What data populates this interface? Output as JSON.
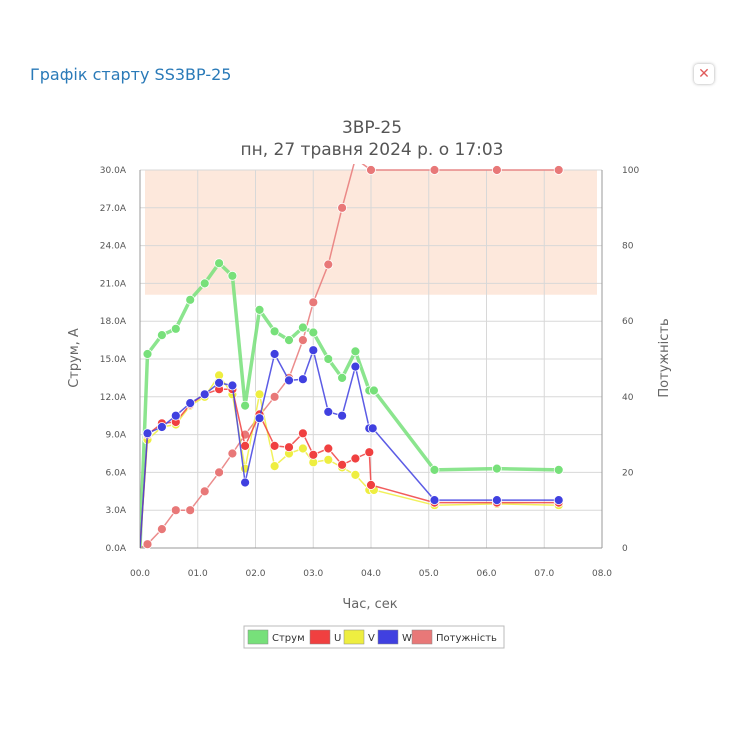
{
  "dialog": {
    "title": "Графік старту SS3BP-25",
    "close_symbol": "✕"
  },
  "chart_data": {
    "type": "line",
    "title": "3BP-25",
    "subtitle": "пн, 27 травня 2024 р. о 17:03",
    "xlabel": "Час, сек",
    "ylabel_left": "Струм, А",
    "ylabel_right": "Потужність",
    "xlim": [
      0,
      8
    ],
    "ylim_left": [
      0,
      30
    ],
    "ylim_right": [
      0,
      100
    ],
    "x_ticks": [
      "00.0",
      "01.0",
      "02.0",
      "03.0",
      "04.0",
      "05.0",
      "06.0",
      "07.0",
      "08.0"
    ],
    "y_left_ticks": [
      "0.0A",
      "3.0A",
      "6.0A",
      "9.0A",
      "12.0A",
      "15.0A",
      "18.0A",
      "21.0A",
      "24.0A",
      "27.0A",
      "30.0A"
    ],
    "y_right_ticks": [
      "0",
      "20",
      "40",
      "60",
      "80",
      "100"
    ],
    "grid": true,
    "legend_position": "bottom",
    "band": {
      "axis": "right",
      "from": 67,
      "to": 100,
      "color": "#fde8dc"
    },
    "series": [
      {
        "name": "Струм",
        "color": "#77e07a",
        "axis": "left",
        "width": 3.5,
        "points": [
          [
            0,
            0
          ],
          [
            0.13,
            15.4
          ],
          [
            0.38,
            16.9
          ],
          [
            0.62,
            17.4
          ],
          [
            0.87,
            19.7
          ],
          [
            1.12,
            21.0
          ],
          [
            1.37,
            22.6
          ],
          [
            1.6,
            21.6
          ],
          [
            1.82,
            11.3
          ],
          [
            2.07,
            18.9
          ],
          [
            2.33,
            17.2
          ],
          [
            2.58,
            16.5
          ],
          [
            2.82,
            17.5
          ],
          [
            3.0,
            17.1
          ],
          [
            3.26,
            15.0
          ],
          [
            3.5,
            13.5
          ],
          [
            3.73,
            15.6
          ],
          [
            3.97,
            12.5
          ],
          [
            4.05,
            12.5
          ],
          [
            5.1,
            6.2
          ],
          [
            6.18,
            6.3
          ],
          [
            7.25,
            6.2
          ]
        ]
      },
      {
        "name": "U",
        "color": "#f04040",
        "axis": "left",
        "width": 1.5,
        "points": [
          [
            0,
            0
          ],
          [
            0.13,
            9.0
          ],
          [
            0.38,
            9.9
          ],
          [
            0.62,
            10.0
          ],
          [
            0.87,
            11.4
          ],
          [
            1.12,
            12.2
          ],
          [
            1.37,
            12.6
          ],
          [
            1.6,
            12.6
          ],
          [
            1.82,
            8.1
          ],
          [
            2.07,
            10.6
          ],
          [
            2.33,
            8.1
          ],
          [
            2.58,
            8.0
          ],
          [
            2.82,
            9.1
          ],
          [
            3.0,
            7.4
          ],
          [
            3.26,
            7.9
          ],
          [
            3.5,
            6.6
          ],
          [
            3.73,
            7.1
          ],
          [
            3.97,
            7.6
          ],
          [
            4.0,
            5.0
          ],
          [
            5.1,
            3.6
          ],
          [
            6.18,
            3.6
          ],
          [
            7.25,
            3.6
          ]
        ]
      },
      {
        "name": "V",
        "color": "#eeee40",
        "axis": "left",
        "width": 1.5,
        "points": [
          [
            0,
            0
          ],
          [
            0.13,
            8.6
          ],
          [
            0.38,
            9.6
          ],
          [
            0.62,
            9.8
          ],
          [
            0.87,
            11.3
          ],
          [
            1.12,
            12.0
          ],
          [
            1.37,
            13.7
          ],
          [
            1.6,
            12.2
          ],
          [
            1.82,
            6.3
          ],
          [
            2.07,
            12.2
          ],
          [
            2.33,
            6.5
          ],
          [
            2.58,
            7.5
          ],
          [
            2.82,
            7.9
          ],
          [
            3.0,
            6.8
          ],
          [
            3.26,
            7.0
          ],
          [
            3.5,
            6.4
          ],
          [
            3.73,
            5.8
          ],
          [
            3.97,
            4.6
          ],
          [
            4.05,
            4.6
          ],
          [
            5.1,
            3.4
          ],
          [
            6.18,
            3.5
          ],
          [
            7.25,
            3.4
          ]
        ]
      },
      {
        "name": "W",
        "color": "#4040e0",
        "axis": "left",
        "width": 1.5,
        "points": [
          [
            0,
            0
          ],
          [
            0.13,
            9.1
          ],
          [
            0.38,
            9.6
          ],
          [
            0.62,
            10.5
          ],
          [
            0.87,
            11.5
          ],
          [
            1.12,
            12.2
          ],
          [
            1.37,
            13.1
          ],
          [
            1.6,
            12.9
          ],
          [
            1.82,
            5.2
          ],
          [
            2.07,
            10.3
          ],
          [
            2.33,
            15.4
          ],
          [
            2.58,
            13.3
          ],
          [
            2.82,
            13.4
          ],
          [
            3.0,
            15.7
          ],
          [
            3.26,
            10.8
          ],
          [
            3.5,
            10.5
          ],
          [
            3.73,
            14.4
          ],
          [
            3.97,
            9.5
          ],
          [
            4.03,
            9.5
          ],
          [
            5.1,
            3.8
          ],
          [
            6.18,
            3.8
          ],
          [
            7.25,
            3.8
          ]
        ]
      },
      {
        "name": "Потужність",
        "color": "#e87878",
        "axis": "right",
        "width": 1.5,
        "points": [
          [
            0,
            0
          ],
          [
            0.13,
            1
          ],
          [
            0.38,
            5
          ],
          [
            0.62,
            10
          ],
          [
            0.87,
            10
          ],
          [
            1.12,
            15
          ],
          [
            1.37,
            20
          ],
          [
            1.6,
            25
          ],
          [
            1.82,
            30
          ],
          [
            2.07,
            35
          ],
          [
            2.33,
            40
          ],
          [
            2.58,
            45
          ],
          [
            2.82,
            55
          ],
          [
            3.0,
            65
          ],
          [
            3.26,
            75
          ],
          [
            3.5,
            90
          ],
          [
            3.73,
            103
          ],
          [
            4.0,
            100
          ],
          [
            5.1,
            100
          ],
          [
            6.18,
            100
          ],
          [
            7.25,
            100
          ]
        ]
      }
    ]
  }
}
